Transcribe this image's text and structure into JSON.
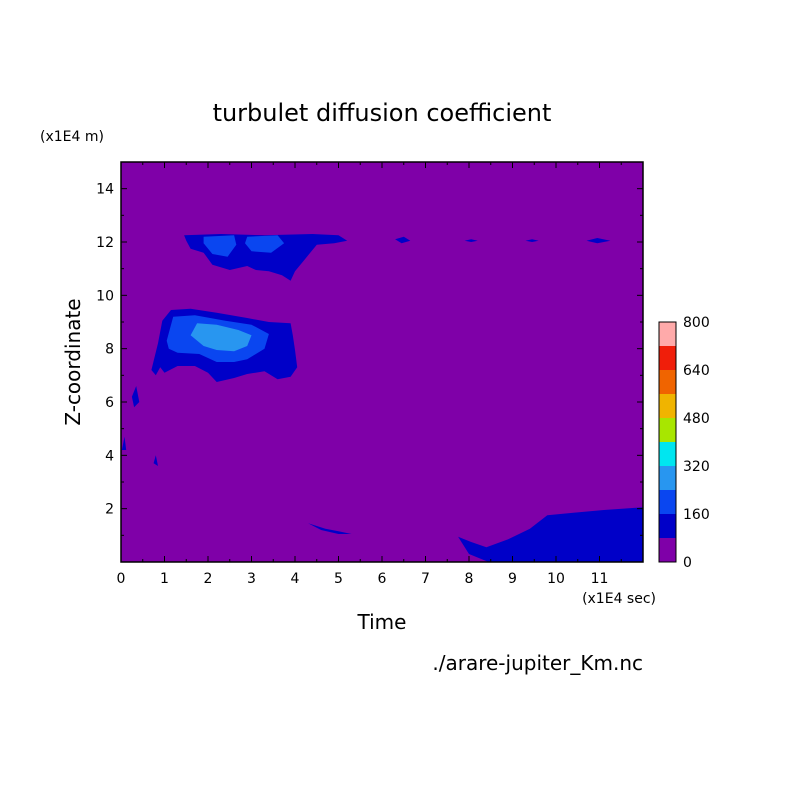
{
  "chart_data": {
    "type": "heatmap",
    "title": "turbulet diffusion coefficient",
    "xlabel": "Time",
    "ylabel": "Z-coordinate",
    "x_unit": "(x1E4 sec)",
    "y_unit": "(x1E4 m)",
    "source_label": "./arare-jupiter_Km.nc",
    "xlim": [
      0,
      12
    ],
    "ylim": [
      0,
      15
    ],
    "x_ticks": [
      "0",
      "1",
      "2",
      "3",
      "4",
      "5",
      "6",
      "7",
      "8",
      "9",
      "10",
      "11"
    ],
    "y_ticks": [
      "2",
      "4",
      "6",
      "8",
      "10",
      "12",
      "14"
    ],
    "colorbar": {
      "levels": [
        "0",
        "160",
        "320",
        "480",
        "640",
        "800"
      ],
      "vmin": 0,
      "vmax": 800,
      "step": 80,
      "colors": [
        "#7f00a8",
        "#0000c8",
        "#0a46f0",
        "#2896f0",
        "#00e6f0",
        "#a8e600",
        "#f0b400",
        "#f06400",
        "#f01e0a",
        "#ffaaaa"
      ]
    },
    "regions": [
      {
        "level": 80,
        "points": [
          [
            1.45,
            12.25
          ],
          [
            2.3,
            12.3
          ],
          [
            3.3,
            12.25
          ],
          [
            4.4,
            12.3
          ],
          [
            5.0,
            12.25
          ],
          [
            5.2,
            12.05
          ],
          [
            4.9,
            11.95
          ],
          [
            4.5,
            11.9
          ],
          [
            4.2,
            11.3
          ],
          [
            4.0,
            10.9
          ],
          [
            3.9,
            10.55
          ],
          [
            3.7,
            10.75
          ],
          [
            3.4,
            10.9
          ],
          [
            3.1,
            10.95
          ],
          [
            2.9,
            11.1
          ],
          [
            2.5,
            10.95
          ],
          [
            2.1,
            11.15
          ],
          [
            1.9,
            11.6
          ],
          [
            1.6,
            11.75
          ],
          [
            1.5,
            12.05
          ]
        ]
      },
      {
        "level": 160,
        "points": [
          [
            1.9,
            12.2
          ],
          [
            2.6,
            12.25
          ],
          [
            2.65,
            11.9
          ],
          [
            2.45,
            11.45
          ],
          [
            2.1,
            11.55
          ],
          [
            1.9,
            11.95
          ]
        ]
      },
      {
        "level": 160,
        "points": [
          [
            2.9,
            12.2
          ],
          [
            3.6,
            12.25
          ],
          [
            3.75,
            11.95
          ],
          [
            3.45,
            11.6
          ],
          [
            3.0,
            11.65
          ],
          [
            2.85,
            11.95
          ]
        ]
      },
      {
        "level": 80,
        "points": [
          [
            0.7,
            7.2
          ],
          [
            0.85,
            8.2
          ],
          [
            0.95,
            9.05
          ],
          [
            1.15,
            9.45
          ],
          [
            1.6,
            9.5
          ],
          [
            2.2,
            9.35
          ],
          [
            2.9,
            9.15
          ],
          [
            3.4,
            9.0
          ],
          [
            3.9,
            8.95
          ],
          [
            3.95,
            8.5
          ],
          [
            4.0,
            7.95
          ],
          [
            4.05,
            7.3
          ],
          [
            3.9,
            6.95
          ],
          [
            3.6,
            6.85
          ],
          [
            3.3,
            7.15
          ],
          [
            2.9,
            7.05
          ],
          [
            2.6,
            6.9
          ],
          [
            2.2,
            6.75
          ],
          [
            2.0,
            7.1
          ],
          [
            1.7,
            7.35
          ],
          [
            1.3,
            7.35
          ],
          [
            1.0,
            7.1
          ],
          [
            0.9,
            7.3
          ],
          [
            0.8,
            7.0
          ]
        ]
      },
      {
        "level": 160,
        "points": [
          [
            1.05,
            8.3
          ],
          [
            1.2,
            9.2
          ],
          [
            1.7,
            9.25
          ],
          [
            2.4,
            9.05
          ],
          [
            3.0,
            8.9
          ],
          [
            3.4,
            8.55
          ],
          [
            3.3,
            8.0
          ],
          [
            2.9,
            7.6
          ],
          [
            2.6,
            7.5
          ],
          [
            2.2,
            7.5
          ],
          [
            1.8,
            7.8
          ],
          [
            1.3,
            7.85
          ],
          [
            1.1,
            8.0
          ]
        ]
      },
      {
        "level": 240,
        "points": [
          [
            1.6,
            8.5
          ],
          [
            1.75,
            8.95
          ],
          [
            2.2,
            8.9
          ],
          [
            2.7,
            8.7
          ],
          [
            3.0,
            8.5
          ],
          [
            2.9,
            8.1
          ],
          [
            2.6,
            7.9
          ],
          [
            2.2,
            7.95
          ],
          [
            1.9,
            8.1
          ]
        ]
      },
      {
        "level": 80,
        "points": [
          [
            4.3,
            1.45
          ],
          [
            4.7,
            1.25
          ],
          [
            5.0,
            1.15
          ],
          [
            5.3,
            1.05
          ],
          [
            5.0,
            1.05
          ],
          [
            4.6,
            1.2
          ]
        ]
      },
      {
        "level": 80,
        "points": [
          [
            7.75,
            0.95
          ],
          [
            8.05,
            0.75
          ],
          [
            8.4,
            0.55
          ],
          [
            8.9,
            0.85
          ],
          [
            9.4,
            1.25
          ],
          [
            9.8,
            1.75
          ],
          [
            10.4,
            1.85
          ],
          [
            11.1,
            1.95
          ],
          [
            12.0,
            2.05
          ],
          [
            12.0,
            0.0
          ],
          [
            8.45,
            0.0
          ],
          [
            8.0,
            0.3
          ]
        ]
      },
      {
        "level": 80,
        "points": [
          [
            6.3,
            12.1
          ],
          [
            6.5,
            12.2
          ],
          [
            6.65,
            12.05
          ],
          [
            6.45,
            11.95
          ]
        ]
      },
      {
        "level": 80,
        "points": [
          [
            7.9,
            12.05
          ],
          [
            8.05,
            12.1
          ],
          [
            8.2,
            12.05
          ],
          [
            8.05,
            12.0
          ]
        ]
      },
      {
        "level": 80,
        "points": [
          [
            9.3,
            12.05
          ],
          [
            9.45,
            12.1
          ],
          [
            9.6,
            12.05
          ],
          [
            9.45,
            12.0
          ]
        ]
      },
      {
        "level": 80,
        "points": [
          [
            10.7,
            12.05
          ],
          [
            10.95,
            12.15
          ],
          [
            11.25,
            12.05
          ],
          [
            10.95,
            11.95
          ]
        ]
      },
      {
        "level": 80,
        "points": [
          [
            0.25,
            6.2
          ],
          [
            0.35,
            6.6
          ],
          [
            0.42,
            6.0
          ],
          [
            0.3,
            5.8
          ]
        ]
      },
      {
        "level": 80,
        "points": [
          [
            0.02,
            4.2
          ],
          [
            0.08,
            4.7
          ],
          [
            0.12,
            4.2
          ]
        ]
      },
      {
        "level": 80,
        "points": [
          [
            0.75,
            3.7
          ],
          [
            0.8,
            4.0
          ],
          [
            0.85,
            3.6
          ]
        ]
      }
    ]
  }
}
